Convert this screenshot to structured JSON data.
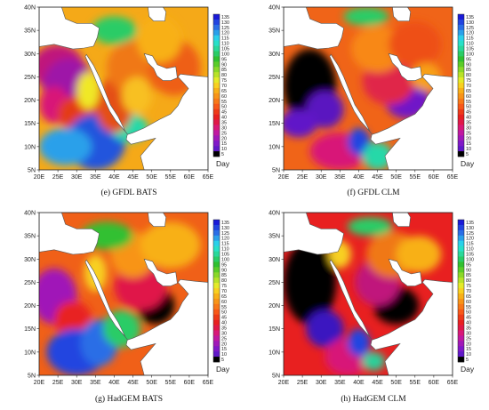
{
  "x_ticks": [
    "20E",
    "25E",
    "30E",
    "35E",
    "40E",
    "45E",
    "50E",
    "55E",
    "60E",
    "65E"
  ],
  "y_ticks": [
    "40N",
    "35N",
    "30N",
    "25N",
    "20N",
    "15N",
    "10N",
    "5N"
  ],
  "colorbar": {
    "unit": "Day",
    "ticks": [
      "135",
      "130",
      "125",
      "120",
      "115",
      "110",
      "105",
      "100",
      "95",
      "90",
      "85",
      "80",
      "75",
      "70",
      "65",
      "60",
      "55",
      "50",
      "45",
      "40",
      "35",
      "30",
      "25",
      "20",
      "15",
      "10",
      "5"
    ],
    "colors": [
      "#1a1ad8",
      "#2244e0",
      "#2a6ee6",
      "#2aa0ea",
      "#2ad0ea",
      "#28e0c8",
      "#2ad89a",
      "#2acc66",
      "#30c030",
      "#5acc28",
      "#8ad828",
      "#b8e228",
      "#e4ea28",
      "#f8d020",
      "#f8b018",
      "#f89418",
      "#f87818",
      "#f85818",
      "#ee3a18",
      "#e82020",
      "#e01848",
      "#d81878",
      "#c018a0",
      "#a018b8",
      "#8018c8",
      "#6018c8",
      "#000000"
    ]
  },
  "panels": [
    {
      "id": "e",
      "caption": "(e)   GFDL BATS"
    },
    {
      "id": "f",
      "caption": "(f)   GFDL CLM"
    },
    {
      "id": "g",
      "caption": "(g)   HadGEM BATS"
    },
    {
      "id": "h",
      "caption": "(h)   HadGEM CLM"
    }
  ]
}
